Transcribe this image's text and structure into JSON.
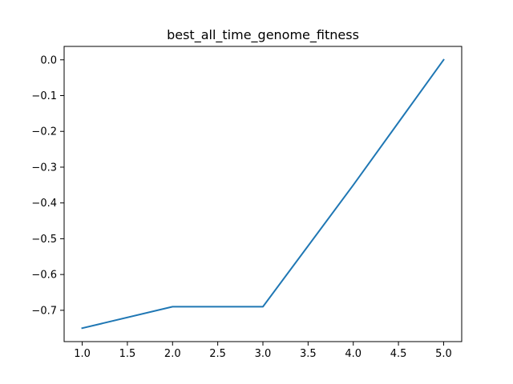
{
  "chart_data": {
    "type": "line",
    "title": "best_all_time_genome_fitness",
    "xlabel": "",
    "ylabel": "",
    "xlim": [
      0.8,
      5.2
    ],
    "ylim": [
      -0.7875,
      0.0375
    ],
    "x_ticks": [
      1.0,
      1.5,
      2.0,
      2.5,
      3.0,
      3.5,
      4.0,
      4.5,
      5.0
    ],
    "x_tick_labels": [
      "1.0",
      "1.5",
      "2.0",
      "2.5",
      "3.0",
      "3.5",
      "4.0",
      "4.5",
      "5.0"
    ],
    "y_ticks": [
      0.0,
      -0.1,
      -0.2,
      -0.3,
      -0.4,
      -0.5,
      -0.6,
      -0.7
    ],
    "y_tick_labels": [
      "0.0",
      "−0.1",
      "−0.2",
      "−0.3",
      "−0.4",
      "−0.5",
      "−0.6",
      "−0.7"
    ],
    "grid": false,
    "series": [
      {
        "x": [
          1,
          2,
          3,
          4,
          5
        ],
        "y": [
          -0.75,
          -0.69,
          -0.69,
          -0.35,
          0.0
        ],
        "color": "#1f77b4"
      }
    ]
  }
}
